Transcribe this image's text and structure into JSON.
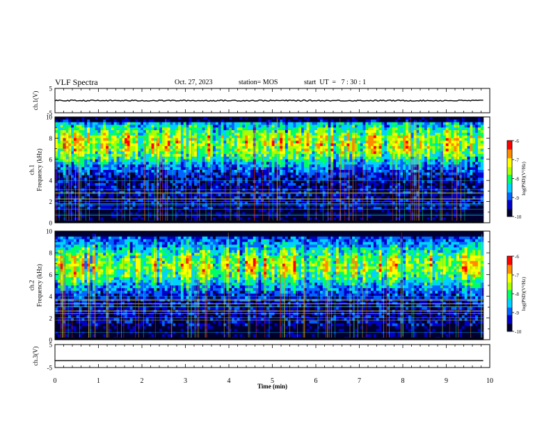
{
  "header": {
    "title": "VLF Spectra",
    "date": "Oct. 27, 2023",
    "station": "station= MOS",
    "start": "start  UT  =   7 : 30 : 1"
  },
  "chart_data": [
    {
      "type": "line",
      "panel": "ch.1 waveform",
      "ylabel": "ch.1(V)",
      "ylim": [
        -5,
        5
      ],
      "yticks": [
        "5",
        "-5"
      ],
      "series": [
        {
          "x": [
            0,
            9.85
          ],
          "values": [
            0,
            0
          ]
        }
      ]
    },
    {
      "type": "heatmap",
      "panel": "ch.1 spectrogram",
      "ylabel": "ch.1\nFrequency (kHz)",
      "ylim": [
        0,
        10
      ],
      "yticks": [
        "0",
        "2",
        "4",
        "6",
        "8",
        "10"
      ],
      "xlim": [
        0,
        9.85
      ],
      "colorbar": {
        "label": "log(PSD)(V²/Hz)",
        "range": [
          -10,
          -6
        ],
        "ticks": [
          "-6",
          "-7",
          "-8",
          "-9",
          "-10"
        ],
        "colormap": [
          "#000030",
          "#0000c8",
          "#0064ff",
          "#00d2ff",
          "#00ff64",
          "#aaff00",
          "#ffff00",
          "#ff8c00",
          "#ff0000",
          "#ffffff"
        ]
      },
      "band_center_khz": 7.5
    },
    {
      "type": "heatmap",
      "panel": "ch.2 spectrogram",
      "ylabel": "ch.2\nFrequency (kHz)",
      "ylim": [
        0,
        10
      ],
      "yticks": [
        "0",
        "2",
        "4",
        "6",
        "8",
        "10"
      ],
      "xlim": [
        0,
        9.85
      ],
      "colorbar": {
        "label": "log(PSD)(V²/Hz)",
        "range": [
          -10,
          -6
        ],
        "ticks": [
          "-6",
          "-7",
          "-8",
          "-9",
          "-10"
        ],
        "colormap": [
          "#000030",
          "#0000c8",
          "#0064ff",
          "#00d2ff",
          "#00ff64",
          "#aaff00",
          "#ffff00",
          "#ff8c00",
          "#ff0000",
          "#ffffff"
        ]
      },
      "band_center_khz": 6.8
    },
    {
      "type": "line",
      "panel": "ch.3 waveform",
      "ylabel": "ch.3(V)",
      "ylim": [
        -5,
        5
      ],
      "yticks": [
        "5",
        "-5"
      ],
      "series": [
        {
          "x": [
            0,
            9.85
          ],
          "values": [
            -2,
            -2
          ]
        }
      ]
    }
  ],
  "xaxis": {
    "label": "Time  (min)",
    "range": [
      0,
      10
    ],
    "ticks": [
      "0",
      "1",
      "2",
      "3",
      "4",
      "5",
      "6",
      "7",
      "8",
      "9",
      "10"
    ]
  }
}
